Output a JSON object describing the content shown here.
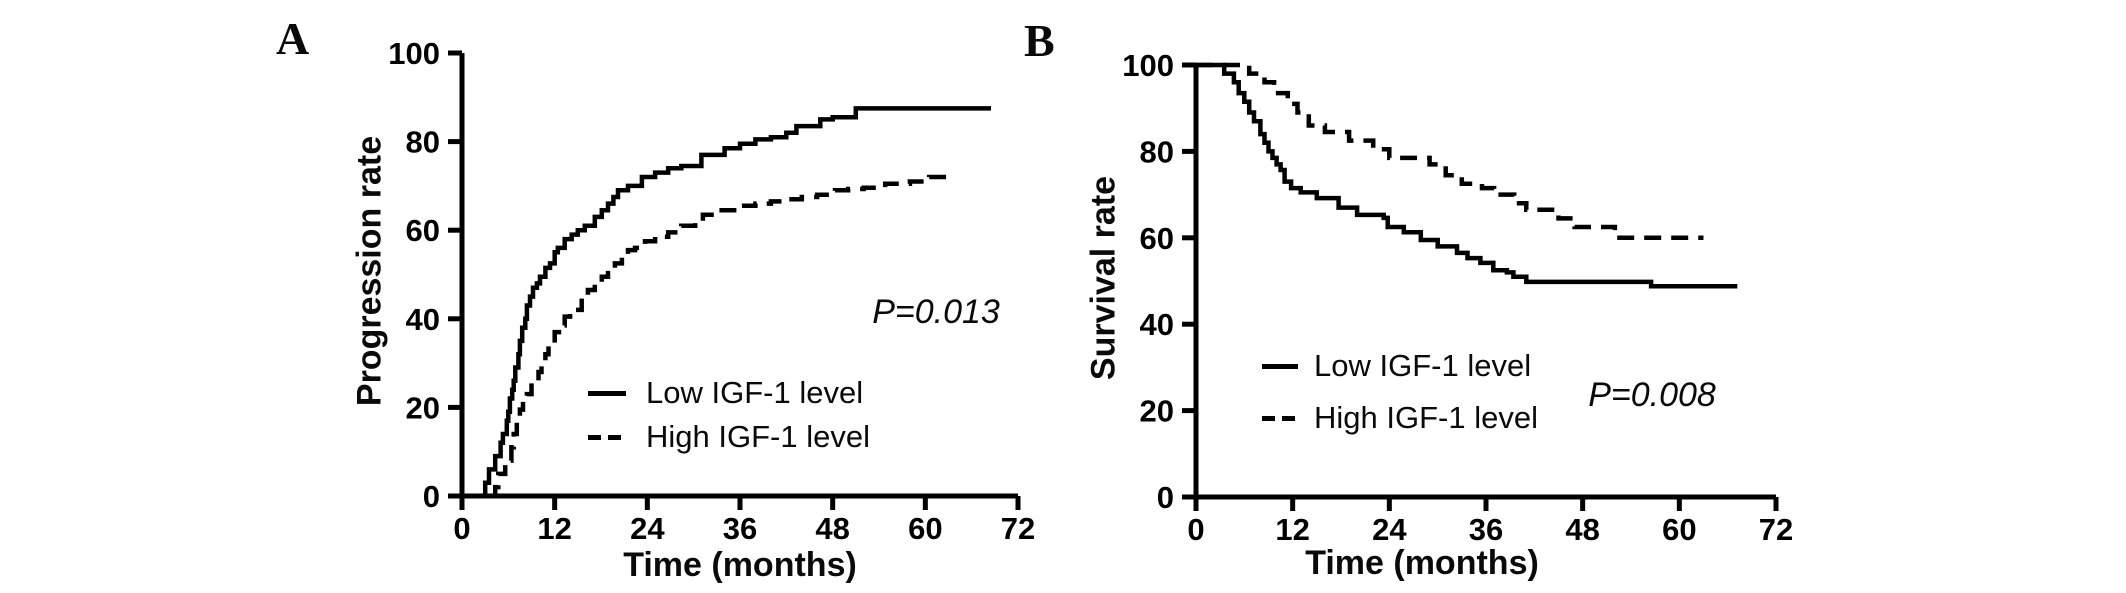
{
  "figure": {
    "background_color": "#ffffff",
    "ink_color": "#000000"
  },
  "panels": [
    {
      "label": "A"
    },
    {
      "label": "B"
    }
  ],
  "chart_data": [
    {
      "type": "line",
      "subtype": "kaplan-meier-step",
      "panel": "A",
      "title": "",
      "xlabel": "Time (months)",
      "ylabel": "Progression rate",
      "xlim": [
        0,
        72
      ],
      "ylim": [
        0,
        100
      ],
      "x_ticks": [
        0,
        12,
        24,
        36,
        48,
        60,
        72
      ],
      "y_ticks": [
        0,
        20,
        40,
        60,
        80,
        100
      ],
      "grid": false,
      "legend_position": "inside lower-middle",
      "annotation": "P=0.013",
      "series": [
        {
          "name": "Low IGF-1 level",
          "line_style": "solid",
          "points": [
            [
              2.3,
              0
            ],
            [
              3,
              3
            ],
            [
              3.5,
              6
            ],
            [
              4.3,
              9
            ],
            [
              5,
              12
            ],
            [
              5.3,
              14
            ],
            [
              5.8,
              17
            ],
            [
              6,
              19
            ],
            [
              6.2,
              22
            ],
            [
              6.5,
              24
            ],
            [
              6.7,
              26
            ],
            [
              6.9,
              29
            ],
            [
              7.3,
              32
            ],
            [
              7.5,
              35
            ],
            [
              7.8,
              38
            ],
            [
              8.2,
              40
            ],
            [
              8.4,
              43
            ],
            [
              8.8,
              45
            ],
            [
              9.2,
              47
            ],
            [
              9.7,
              48
            ],
            [
              10.1,
              49.5
            ],
            [
              10.8,
              51.5
            ],
            [
              11.4,
              52.5
            ],
            [
              12,
              55
            ],
            [
              12.4,
              56
            ],
            [
              13.3,
              58
            ],
            [
              14.2,
              59
            ],
            [
              15,
              60
            ],
            [
              15.9,
              61
            ],
            [
              17.2,
              63
            ],
            [
              18.1,
              64.5
            ],
            [
              18.9,
              66
            ],
            [
              19.6,
              67.5
            ],
            [
              20.2,
              69
            ],
            [
              21.5,
              70
            ],
            [
              23.3,
              72
            ],
            [
              25,
              73
            ],
            [
              26.7,
              74
            ],
            [
              28.4,
              74.5
            ],
            [
              31,
              77
            ],
            [
              34,
              78.5
            ],
            [
              36,
              79.5
            ],
            [
              38,
              80.5
            ],
            [
              40,
              81
            ],
            [
              42,
              82
            ],
            [
              43.3,
              83.5
            ],
            [
              46.4,
              85
            ],
            [
              48,
              85.5
            ],
            [
              51,
              87.5
            ],
            [
              68.5,
              87.5
            ]
          ]
        },
        {
          "name": "High IGF-1 level",
          "line_style": "dashed",
          "points": [
            [
              3.9,
              0
            ],
            [
              4.3,
              2
            ],
            [
              4.7,
              5
            ],
            [
              5.6,
              8
            ],
            [
              6.4,
              11
            ],
            [
              6.7,
              14
            ],
            [
              7.1,
              17
            ],
            [
              7.5,
              19.5
            ],
            [
              7.9,
              21.5
            ],
            [
              8.4,
              23
            ],
            [
              9,
              25.5
            ],
            [
              9.9,
              28
            ],
            [
              10.3,
              30
            ],
            [
              10.8,
              32
            ],
            [
              11.2,
              34.5
            ],
            [
              12,
              37
            ],
            [
              12.9,
              38.5
            ],
            [
              13.3,
              40.5
            ],
            [
              14,
              42
            ],
            [
              15.5,
              45
            ],
            [
              16.3,
              46.5
            ],
            [
              17.2,
              48
            ],
            [
              18.1,
              49.5
            ],
            [
              18.9,
              51
            ],
            [
              19.8,
              52.5
            ],
            [
              20.7,
              54
            ],
            [
              21.5,
              55.5
            ],
            [
              22.4,
              56
            ],
            [
              23.7,
              57.5
            ],
            [
              25,
              58.5
            ],
            [
              26.7,
              59.5
            ],
            [
              28.4,
              61
            ],
            [
              30.2,
              62
            ],
            [
              31.2,
              63.5
            ],
            [
              33,
              64.5
            ],
            [
              36,
              65.5
            ],
            [
              38,
              66
            ],
            [
              40,
              66.5
            ],
            [
              42,
              67
            ],
            [
              44,
              67.5
            ],
            [
              46,
              68
            ],
            [
              48.3,
              69
            ],
            [
              50,
              69.3
            ],
            [
              52,
              69.6
            ],
            [
              54.8,
              70.5
            ],
            [
              58,
              71
            ],
            [
              60.5,
              72
            ],
            [
              63.6,
              72
            ]
          ]
        }
      ]
    },
    {
      "type": "line",
      "subtype": "kaplan-meier-step",
      "panel": "B",
      "title": "",
      "xlabel": "Time (months)",
      "ylabel": "Survival rate",
      "xlim": [
        0,
        72
      ],
      "ylim": [
        0,
        100
      ],
      "x_ticks": [
        0,
        12,
        24,
        36,
        48,
        60,
        72
      ],
      "y_ticks": [
        0,
        20,
        40,
        60,
        80,
        100
      ],
      "grid": false,
      "legend_position": "inside lower-middle",
      "annotation": "P=0.008",
      "series": [
        {
          "name": "Low IGF-1 level",
          "line_style": "solid",
          "points": [
            [
              0,
              100
            ],
            [
              3,
              100
            ],
            [
              3.5,
              98
            ],
            [
              4.7,
              96
            ],
            [
              5.3,
              93.5
            ],
            [
              6,
              91.5
            ],
            [
              6.6,
              89
            ],
            [
              7.2,
              87
            ],
            [
              8,
              84
            ],
            [
              8.5,
              82
            ],
            [
              9,
              80
            ],
            [
              9.5,
              78.5
            ],
            [
              10,
              77
            ],
            [
              10.5,
              75.7
            ],
            [
              11,
              73
            ],
            [
              11.8,
              71.5
            ],
            [
              13,
              70.5
            ],
            [
              15,
              69.2
            ],
            [
              17.7,
              67
            ],
            [
              20,
              65.3
            ],
            [
              23.3,
              64.6
            ],
            [
              23.8,
              62.5
            ],
            [
              25.8,
              61.3
            ],
            [
              27.9,
              59.5
            ],
            [
              30,
              58
            ],
            [
              32.4,
              56.5
            ],
            [
              33.7,
              55.3
            ],
            [
              35.3,
              54.2
            ],
            [
              36.9,
              52.5
            ],
            [
              38.6,
              52
            ],
            [
              39.4,
              51
            ],
            [
              41,
              49.8
            ],
            [
              56,
              49.8
            ],
            [
              56.5,
              48.8
            ],
            [
              67.2,
              48.8
            ]
          ]
        },
        {
          "name": "High IGF-1 level",
          "line_style": "dashed",
          "points": [
            [
              0,
              100
            ],
            [
              6,
              100
            ],
            [
              6.6,
              98
            ],
            [
              8.5,
              96
            ],
            [
              9.7,
              93.5
            ],
            [
              11.4,
              91
            ],
            [
              12.6,
              89
            ],
            [
              14,
              86
            ],
            [
              16,
              84.5
            ],
            [
              19,
              82.5
            ],
            [
              22,
              80.5
            ],
            [
              24,
              78.5
            ],
            [
              29,
              77
            ],
            [
              31,
              74.5
            ],
            [
              33,
              72.5
            ],
            [
              35.5,
              71.5
            ],
            [
              37,
              70
            ],
            [
              39.5,
              68
            ],
            [
              41,
              66.5
            ],
            [
              45,
              64.5
            ],
            [
              47,
              62.5
            ],
            [
              52,
              60
            ],
            [
              63,
              60
            ]
          ]
        }
      ]
    }
  ]
}
